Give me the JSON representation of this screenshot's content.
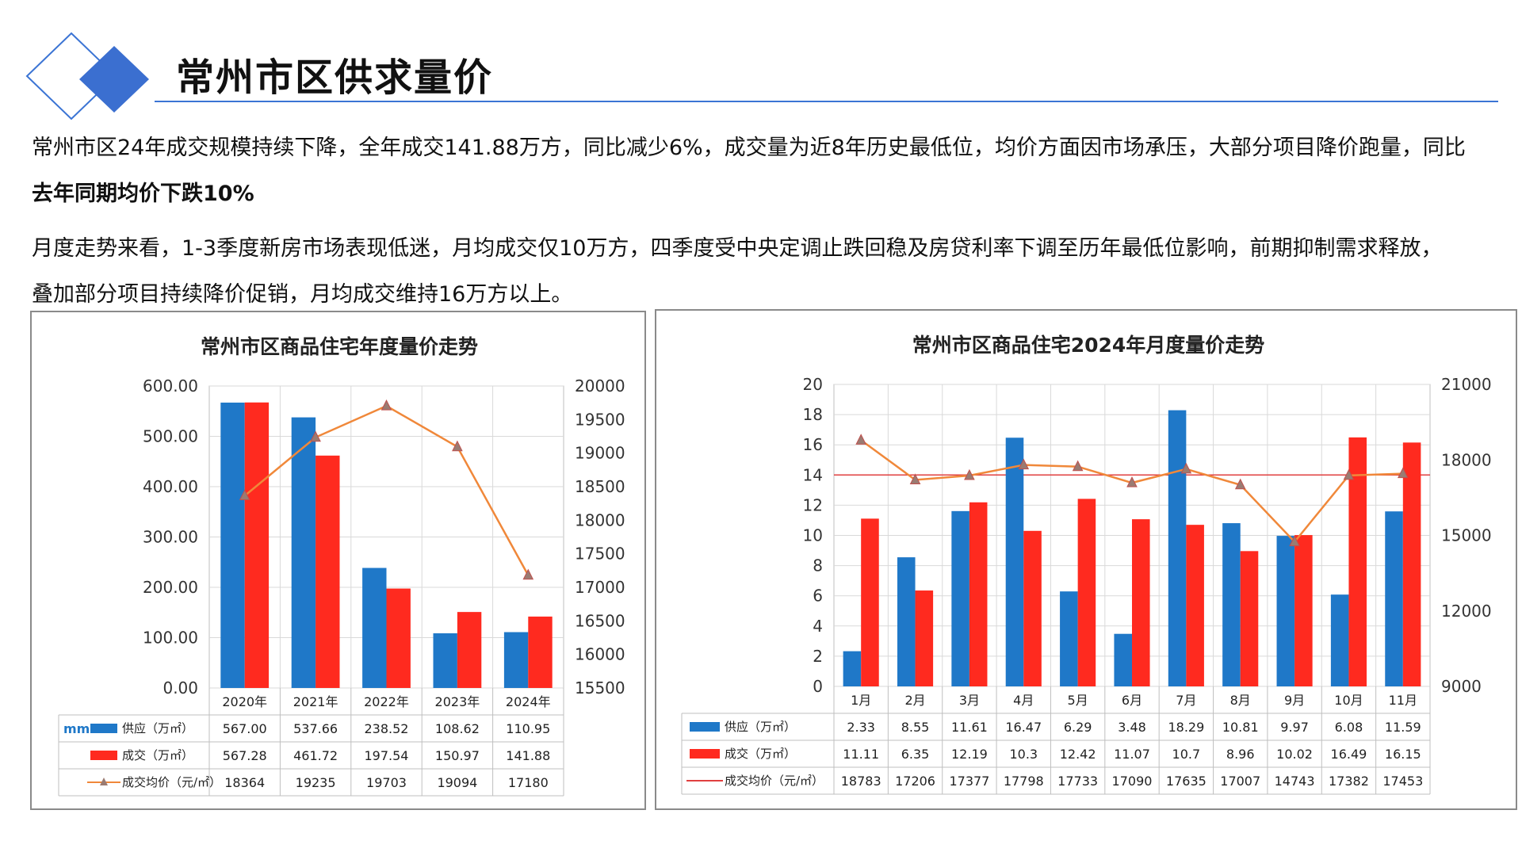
{
  "header": {
    "title": "常州市区供求量价"
  },
  "paragraphs": {
    "p1_line1": "常州市区24年成交规模持续下降，全年成交141.88万方，同比减少6%，成交量为近8年历史最低位，均价方面因市场承压，大部分项目降价跑量，同比",
    "p1_line2": "去年同期均价下跌10%",
    "p2_line1": "月度走势来看，1-3季度新房市场表现低迷，月均成交仅10万方，四季度受中央定调止跌回稳及房贷利率下调至历年最低位影响，前期抑制需求释放，",
    "p2_line2": "叠加部分项目持续降价促销，月均成交维持16万方以上。"
  },
  "colors": {
    "supply": "#1f78c8",
    "deal": "#ff2a1f",
    "price_line": "#f0883a",
    "ref_line": "#e04040",
    "accent": "#3b74d4"
  },
  "chart_data": [
    {
      "type": "bar",
      "title": "常州市区商品住宅年度量价走势",
      "categories": [
        "2020年",
        "2021年",
        "2022年",
        "2023年",
        "2024年"
      ],
      "series": [
        {
          "name": "供应（万㎡）",
          "kind": "bar",
          "axis": "left",
          "values": [
            567.0,
            537.66,
            238.52,
            108.62,
            110.95
          ],
          "labels": [
            "567.00",
            "537.66",
            "238.52",
            "108.62",
            "110.95"
          ]
        },
        {
          "name": "成交（万㎡）",
          "kind": "bar",
          "axis": "left",
          "values": [
            567.28,
            461.72,
            197.54,
            150.97,
            141.88
          ],
          "labels": [
            "567.28",
            "461.72",
            "197.54",
            "150.97",
            "141.88"
          ]
        },
        {
          "name": "成交均价（元/㎡）",
          "kind": "line",
          "axis": "right",
          "values": [
            18364,
            19235,
            19703,
            19094,
            17180
          ],
          "labels": [
            "18364",
            "19235",
            "19703",
            "19094",
            "17180"
          ]
        }
      ],
      "ylim": [
        0,
        600
      ],
      "yticks": [
        "600.00",
        "500.00",
        "400.00",
        "300.00",
        "200.00",
        "100.00",
        "0.00"
      ],
      "y2lim": [
        15500,
        20000
      ],
      "y2ticks": [
        "20000",
        "19500",
        "19000",
        "18500",
        "18000",
        "17500",
        "17000",
        "16500",
        "16000",
        "15500"
      ],
      "legend_prefix": "mm",
      "grid": true,
      "data_table": true
    },
    {
      "type": "bar",
      "title": "常州市区商品住宅2024年月度量价走势",
      "categories": [
        "1月",
        "2月",
        "3月",
        "4月",
        "5月",
        "6月",
        "7月",
        "8月",
        "9月",
        "10月",
        "11月"
      ],
      "series": [
        {
          "name": "供应（万㎡）",
          "kind": "bar",
          "axis": "left",
          "values": [
            2.33,
            8.55,
            11.61,
            16.47,
            6.29,
            3.48,
            18.29,
            10.81,
            9.97,
            6.08,
            11.59
          ],
          "labels": [
            "2.33",
            "8.55",
            "11.61",
            "16.47",
            "6.29",
            "3.48",
            "18.29",
            "10.81",
            "9.97",
            "6.08",
            "11.59"
          ]
        },
        {
          "name": "成交（万㎡）",
          "kind": "bar",
          "axis": "left",
          "values": [
            11.11,
            6.35,
            12.19,
            10.3,
            12.42,
            11.07,
            10.7,
            8.96,
            10.02,
            16.49,
            16.15
          ],
          "labels": [
            "11.11",
            "6.35",
            "12.19",
            "10.3",
            "12.42",
            "11.07",
            "10.7",
            "8.96",
            "10.02",
            "16.49",
            "16.15"
          ]
        },
        {
          "name": "成交均价（元/㎡）",
          "kind": "line",
          "axis": "right",
          "values": [
            18783,
            17206,
            17377,
            17798,
            17733,
            17090,
            17635,
            17007,
            14743,
            17382,
            17453
          ],
          "labels": [
            "18783",
            "17206",
            "17377",
            "17798",
            "17733",
            "17090",
            "17635",
            "17007",
            "14743",
            "17382",
            "17453"
          ]
        }
      ],
      "ylim": [
        0,
        20
      ],
      "yticks": [
        "20",
        "18",
        "16",
        "14",
        "12",
        "10",
        "8",
        "6",
        "4",
        "2",
        "0"
      ],
      "y2lim": [
        9000,
        21000
      ],
      "y2ticks": [
        "21000",
        "18000",
        "15000",
        "12000",
        "9000"
      ],
      "reference_line": {
        "axis": "left",
        "value": 14
      },
      "grid": true,
      "data_table": true
    }
  ]
}
